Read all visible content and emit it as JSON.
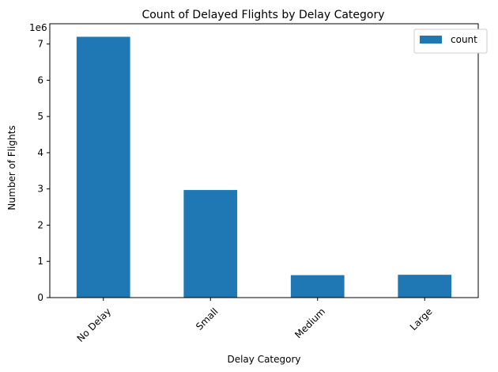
{
  "chart_data": {
    "type": "bar",
    "title": "Count of Delayed Flights by Delay Category",
    "xlabel": "Delay Category",
    "ylabel": "Number of Flights",
    "y_multiplier_label": "1e6",
    "categories": [
      "No Delay",
      "Small",
      "Medium",
      "Large"
    ],
    "series": [
      {
        "name": "count",
        "values": [
          7200000,
          2970000,
          620000,
          630000
        ],
        "color": "#1f77b4"
      }
    ],
    "ylim": [
      0,
      7560000
    ],
    "yticks": [
      0,
      1000000,
      2000000,
      3000000,
      4000000,
      5000000,
      6000000,
      7000000
    ],
    "ytick_labels": [
      "0",
      "1",
      "2",
      "3",
      "4",
      "5",
      "6",
      "7"
    ],
    "legend": {
      "position": "top-right",
      "entries": [
        "count"
      ]
    },
    "grid": false
  }
}
